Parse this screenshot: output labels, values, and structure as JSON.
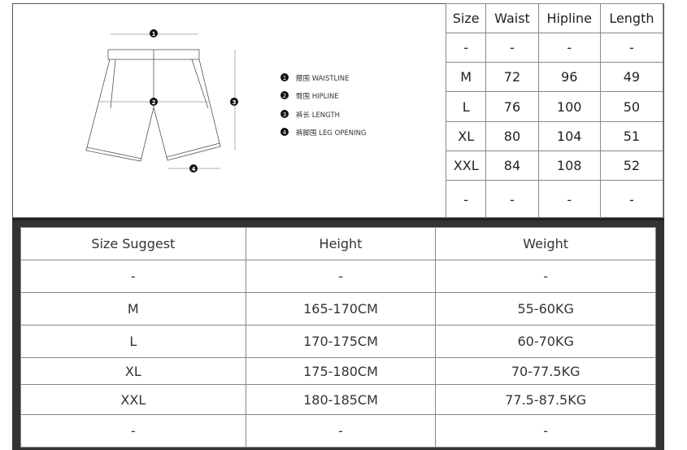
{
  "legend": [
    {
      "num": "1",
      "label": "腰围 WAISTLINE"
    },
    {
      "num": "2",
      "label": "臀围 HIPLINE"
    },
    {
      "num": "3",
      "label": "裤长 LENGTH"
    },
    {
      "num": "4",
      "label": "裤脚围 LEG OPENING"
    }
  ],
  "size_table": {
    "headers": [
      "Size",
      "Waist",
      "Hipline",
      "Length"
    ],
    "rows": [
      [
        "-",
        "-",
        "-",
        "-"
      ],
      [
        "M",
        "72",
        "96",
        "49"
      ],
      [
        "L",
        "76",
        "100",
        "50"
      ],
      [
        "XL",
        "80",
        "104",
        "51"
      ],
      [
        "XXL",
        "84",
        "108",
        "52"
      ],
      [
        "-",
        "-",
        "-",
        "-"
      ]
    ]
  },
  "suggest_table": {
    "headers": [
      "Size Suggest",
      "Height",
      "Weight"
    ],
    "rows": [
      [
        "-",
        "-",
        "-"
      ],
      [
        "M",
        "165-170CM",
        "55-60KG"
      ],
      [
        "L",
        "170-175CM",
        "60-70KG"
      ],
      [
        "XL",
        "175-180CM",
        "70-77.5KG"
      ],
      [
        "XXL",
        "180-185CM",
        "77.5-87.5KG"
      ],
      [
        "-",
        "-",
        "-"
      ]
    ]
  }
}
